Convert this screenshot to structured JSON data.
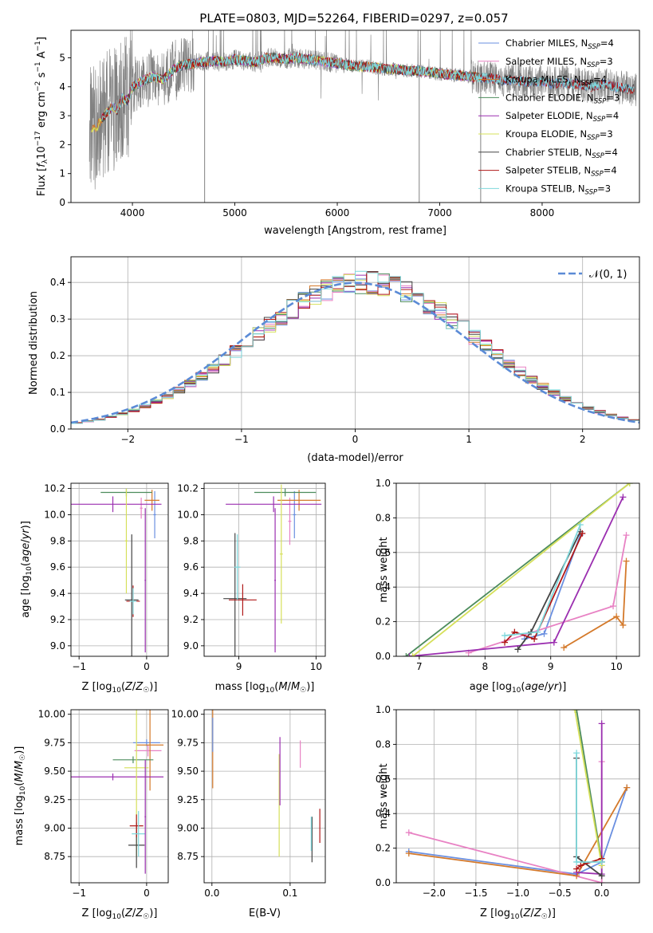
{
  "figure": {
    "title": "PLATE=0803, MJD=52264, FIBERID=0297, z=0.057"
  },
  "colors": {
    "chabrier_miles": "#6a8fe0",
    "salpeter_miles": "#e882c4",
    "kroupa_miles": "#d4792a",
    "chabrier_elodie": "#4c8c5c",
    "salpeter_elodie": "#9b2fb0",
    "kroupa_elodie": "#d6e05a",
    "chabrier_stelib": "#444444",
    "salpeter_stelib": "#b01818",
    "kroupa_stelib": "#7fd8dc",
    "gaussian": "#5b8bd6",
    "data": "#808080"
  },
  "chart_data": [
    {
      "id": "spectrum",
      "type": "line",
      "xlabel": "wavelength [Angstrom, rest frame]",
      "ylabel": "Flux [f_λ 10^-17 erg cm^-2 s^-1 A^-1]",
      "xlim": [
        3400,
        8950
      ],
      "ylim": [
        0,
        5.95
      ],
      "xticks": [
        "4000",
        "5000",
        "6000",
        "7000",
        "8000"
      ],
      "yticks": [
        "0",
        "1",
        "2",
        "3",
        "4",
        "5"
      ],
      "legend": [
        {
          "label": "Chabrier MILES, N",
          "sub": "SSP",
          "suffix": "=4"
        },
        {
          "label": "Salpeter MILES, N",
          "sub": "SSP",
          "suffix": "=3"
        },
        {
          "label": "Kroupa MILES, N",
          "sub": "SSP",
          "suffix": "=4"
        },
        {
          "label": "Chabrier ELODIE, N",
          "sub": "SSP",
          "suffix": "=3"
        },
        {
          "label": "Salpeter ELODIE, N",
          "sub": "SSP",
          "suffix": "=4"
        },
        {
          "label": "Kroupa ELODIE, N",
          "sub": "SSP",
          "suffix": "=3"
        },
        {
          "label": "Chabrier STELIB, N",
          "sub": "SSP",
          "suffix": "=4"
        },
        {
          "label": "Salpeter STELIB, N",
          "sub": "SSP",
          "suffix": "=4"
        },
        {
          "label": "Kroupa STELIB, N",
          "sub": "SSP",
          "suffix": "=3"
        }
      ],
      "continuum": [
        [
          3600,
          2.5
        ],
        [
          3650,
          2.6
        ],
        [
          3700,
          2.9
        ],
        [
          3750,
          3.1
        ],
        [
          3800,
          3.3
        ],
        [
          3850,
          3.2
        ],
        [
          3900,
          3.6
        ],
        [
          3950,
          3.5
        ],
        [
          4000,
          4.0
        ],
        [
          4100,
          4.2
        ],
        [
          4200,
          4.35
        ],
        [
          4300,
          4.25
        ],
        [
          4400,
          4.6
        ],
        [
          4500,
          4.75
        ],
        [
          4600,
          4.8
        ],
        [
          4700,
          4.85
        ],
        [
          4800,
          4.9
        ],
        [
          4900,
          4.85
        ],
        [
          5000,
          4.95
        ],
        [
          5100,
          4.9
        ],
        [
          5200,
          4.85
        ],
        [
          5300,
          5.0
        ],
        [
          5400,
          5.0
        ],
        [
          5500,
          4.95
        ],
        [
          5600,
          5.0
        ],
        [
          5700,
          4.95
        ],
        [
          5800,
          4.9
        ],
        [
          5900,
          4.85
        ],
        [
          6000,
          4.8
        ],
        [
          6100,
          4.75
        ],
        [
          6200,
          4.7
        ],
        [
          6300,
          4.7
        ],
        [
          6400,
          4.65
        ],
        [
          6500,
          4.6
        ],
        [
          6600,
          4.6
        ],
        [
          6700,
          4.55
        ],
        [
          6800,
          4.55
        ],
        [
          6900,
          4.5
        ],
        [
          7000,
          4.45
        ],
        [
          7100,
          4.4
        ],
        [
          7200,
          4.4
        ],
        [
          7300,
          4.35
        ],
        [
          7400,
          4.3
        ],
        [
          7500,
          4.3
        ],
        [
          7600,
          4.2
        ],
        [
          7700,
          4.25
        ],
        [
          7800,
          4.2
        ],
        [
          7900,
          4.15
        ],
        [
          8000,
          4.2
        ],
        [
          8100,
          4.1
        ],
        [
          8200,
          4.15
        ],
        [
          8300,
          4.1
        ],
        [
          8400,
          4.05
        ],
        [
          8500,
          4.0
        ],
        [
          8600,
          4.1
        ],
        [
          8700,
          4.0
        ],
        [
          8800,
          3.95
        ],
        [
          8900,
          3.9
        ]
      ]
    },
    {
      "id": "residuals",
      "type": "line",
      "xlabel": "(data-model)/error",
      "ylabel": "Normed distribution",
      "xlim": [
        -2.5,
        2.5
      ],
      "ylim": [
        0,
        0.47
      ],
      "xticks": [
        "−2",
        "−1",
        "0",
        "1",
        "2"
      ],
      "yticks": [
        "0.0",
        "0.1",
        "0.2",
        "0.3",
        "0.4"
      ],
      "legend": [
        {
          "label": "𝒩(0, 1)"
        }
      ]
    },
    {
      "id": "age_vs_Z",
      "type": "scatter",
      "xlabel": "Z [log10(Z/Z☉)]",
      "ylabel": "age  [log10(age/yr)]",
      "xlim": [
        -1.12,
        0.32
      ],
      "ylim": [
        8.92,
        10.24
      ],
      "xticks": [
        "−1",
        "0"
      ],
      "yticks": [
        "9.0",
        "9.2",
        "9.4",
        "9.6",
        "9.8",
        "10.0",
        "10.2"
      ],
      "series": [
        {
          "x": 0.12,
          "y": 10.0,
          "xerr": 0.02,
          "yerr": 0.18,
          "color": "chabrier_miles"
        },
        {
          "x": -0.08,
          "y": 10.05,
          "xerr": 0.02,
          "yerr": 0.08,
          "color": "salpeter_miles"
        },
        {
          "x": 0.08,
          "y": 10.11,
          "xerr": 0.11,
          "yerr": 0.08,
          "color": "kroupa_miles"
        },
        {
          "x": -0.3,
          "y": 10.17,
          "xerr": 0.38,
          "yerr": 0.03,
          "color": "chabrier_elodie"
        },
        {
          "x": -0.5,
          "y": 10.08,
          "xerr": 0.72,
          "yerr": 0.06,
          "color": "salpeter_elodie"
        },
        {
          "x": -0.3,
          "y": 9.8,
          "xerr": 0.02,
          "yerr": 0.4,
          "color": "kroupa_elodie"
        },
        {
          "x": -0.22,
          "y": 9.35,
          "xerr": 0.1,
          "yerr": 0.5,
          "color": "chabrier_stelib"
        },
        {
          "x": -0.2,
          "y": 9.34,
          "xerr": 0.1,
          "yerr": 0.12,
          "color": "salpeter_stelib"
        },
        {
          "x": -0.2,
          "y": 9.34,
          "xerr": 0.05,
          "yerr": 0.1,
          "color": "kroupa_stelib"
        },
        {
          "x": -0.02,
          "y": 9.5,
          "xerr": 0.01,
          "yerr": 0.55,
          "color": "salpeter_elodie"
        }
      ]
    },
    {
      "id": "age_vs_mass",
      "type": "scatter",
      "xlabel": "mass [log10(M/M☉)]",
      "ylabel": "",
      "xlim": [
        8.55,
        10.12
      ],
      "ylim": [
        8.92,
        10.24
      ],
      "xticks": [
        "9",
        "10"
      ],
      "yticks": [
        "9.0",
        "9.2",
        "9.4",
        "9.6",
        "9.8",
        "10.0",
        "10.2"
      ],
      "series": [
        {
          "x": 9.72,
          "y": 10.0,
          "xerr": 0.02,
          "yerr": 0.18,
          "color": "chabrier_miles"
        },
        {
          "x": 9.66,
          "y": 9.95,
          "xerr": 0.02,
          "yerr": 0.18,
          "color": "salpeter_miles"
        },
        {
          "x": 9.78,
          "y": 10.11,
          "xerr": 0.28,
          "yerr": 0.08,
          "color": "kroupa_miles"
        },
        {
          "x": 9.6,
          "y": 10.17,
          "xerr": 0.4,
          "yerr": 0.03,
          "color": "chabrier_elodie"
        },
        {
          "x": 9.45,
          "y": 10.08,
          "xerr": 0.62,
          "yerr": 0.06,
          "color": "salpeter_elodie"
        },
        {
          "x": 9.55,
          "y": 9.7,
          "xerr": 0.02,
          "yerr": 0.53,
          "color": "kroupa_elodie"
        },
        {
          "x": 8.95,
          "y": 9.36,
          "xerr": 0.15,
          "yerr": 0.5,
          "color": "chabrier_stelib"
        },
        {
          "x": 9.05,
          "y": 9.35,
          "xerr": 0.18,
          "yerr": 0.12,
          "color": "salpeter_stelib"
        },
        {
          "x": 8.98,
          "y": 9.6,
          "xerr": 0.04,
          "yerr": 0.25,
          "color": "kroupa_stelib"
        },
        {
          "x": 9.47,
          "y": 9.5,
          "xerr": 0.01,
          "yerr": 0.55,
          "color": "salpeter_elodie"
        }
      ]
    },
    {
      "id": "weight_vs_age",
      "type": "line",
      "xlabel": "age  [log10(age/yr)]",
      "ylabel": "mass weight",
      "xlim": [
        6.65,
        10.35
      ],
      "ylim": [
        0,
        1.0
      ],
      "xticks": [
        "7",
        "8",
        "9",
        "10"
      ],
      "yticks": [
        "0.0",
        "0.2",
        "0.4",
        "0.6",
        "0.8",
        "1.0"
      ],
      "series": [
        {
          "color": "chabrier_miles",
          "points": [
            [
              8.6,
              0.1
            ],
            [
              8.9,
              0.13
            ],
            [
              9.45,
              0.7
            ]
          ]
        },
        {
          "color": "salpeter_miles",
          "points": [
            [
              7.75,
              0.02
            ],
            [
              9.95,
              0.29
            ],
            [
              10.15,
              0.7
            ]
          ]
        },
        {
          "color": "kroupa_miles",
          "points": [
            [
              9.2,
              0.05
            ],
            [
              10.0,
              0.23
            ],
            [
              10.1,
              0.18
            ],
            [
              10.15,
              0.55
            ]
          ]
        },
        {
          "color": "chabrier_elodie",
          "points": [
            [
              6.8,
              0.0
            ],
            [
              10.2,
              1.0
            ]
          ]
        },
        {
          "color": "salpeter_elodie",
          "points": [
            [
              6.85,
              0.0
            ],
            [
              9.05,
              0.08
            ],
            [
              10.1,
              0.92
            ]
          ]
        },
        {
          "color": "kroupa_elodie",
          "points": [
            [
              6.9,
              0.0
            ],
            [
              10.2,
              1.0
            ]
          ]
        },
        {
          "color": "chabrier_stelib",
          "points": [
            [
              8.5,
              0.04
            ],
            [
              8.7,
              0.14
            ],
            [
              9.45,
              0.72
            ]
          ]
        },
        {
          "color": "salpeter_stelib",
          "points": [
            [
              8.3,
              0.08
            ],
            [
              8.45,
              0.14
            ],
            [
              8.75,
              0.1
            ],
            [
              9.48,
              0.71
            ]
          ]
        },
        {
          "color": "kroupa_stelib",
          "points": [
            [
              8.3,
              0.12
            ],
            [
              8.8,
              0.14
            ],
            [
              9.45,
              0.76
            ]
          ]
        }
      ]
    },
    {
      "id": "mass_vs_Z",
      "type": "scatter",
      "xlabel": "Z [log10(Z/Z☉)]",
      "ylabel": "mass [log10(M/M☉)]",
      "xlim": [
        -1.12,
        0.32
      ],
      "ylim": [
        8.52,
        10.04
      ],
      "xticks": [
        "−1",
        "0"
      ],
      "yticks": [
        "8.75",
        "9.00",
        "9.25",
        "9.50",
        "9.75",
        "10.00"
      ],
      "series": [
        {
          "x": 0.0,
          "y": 9.75,
          "xerr": 0.2,
          "yerr": 0.03,
          "color": "chabrier_miles"
        },
        {
          "x": 0.02,
          "y": 9.68,
          "xerr": 0.2,
          "yerr": 0.05,
          "color": "salpeter_miles"
        },
        {
          "x": 0.05,
          "y": 9.73,
          "xerr": 0.2,
          "yerr": 0.4,
          "color": "kroupa_miles"
        },
        {
          "x": -0.2,
          "y": 9.6,
          "xerr": 0.3,
          "yerr": 0.03,
          "color": "chabrier_elodie"
        },
        {
          "x": -0.5,
          "y": 9.45,
          "xerr": 0.75,
          "yerr": 0.03,
          "color": "salpeter_elodie"
        },
        {
          "x": -0.15,
          "y": 9.53,
          "xerr": 0.18,
          "yerr": 0.78,
          "color": "kroupa_elodie"
        },
        {
          "x": -0.15,
          "y": 8.85,
          "xerr": 0.12,
          "yerr": 0.2,
          "color": "chabrier_stelib"
        },
        {
          "x": -0.15,
          "y": 9.02,
          "xerr": 0.1,
          "yerr": 0.1,
          "color": "salpeter_stelib"
        },
        {
          "x": -0.12,
          "y": 8.95,
          "xerr": 0.1,
          "yerr": 0.2,
          "color": "kroupa_stelib"
        },
        {
          "x": -0.02,
          "y": 9.1,
          "xerr": 0.01,
          "yerr": 0.5,
          "color": "salpeter_elodie"
        }
      ]
    },
    {
      "id": "mass_vs_EBV",
      "type": "scatter",
      "xlabel": "E(B-V)",
      "ylabel": "",
      "xlim": [
        -0.01,
        0.145
      ],
      "ylim": [
        8.52,
        10.04
      ],
      "xticks": [
        "0.0",
        "0.1"
      ],
      "yticks": [
        "8.75",
        "9.00",
        "9.25",
        "9.50",
        "9.75",
        "10.00"
      ],
      "series": [
        {
          "x": 0.001,
          "y": 9.7,
          "yerr": 0.35,
          "color": "kroupa_miles"
        },
        {
          "x": 0.001,
          "y": 9.82,
          "yerr": 0.15,
          "color": "chabrier_miles"
        },
        {
          "x": 0.086,
          "y": 9.2,
          "yerr": 0.45,
          "color": "kroupa_elodie"
        },
        {
          "x": 0.087,
          "y": 9.5,
          "yerr": 0.3,
          "color": "salpeter_elodie"
        },
        {
          "x": 0.113,
          "y": 9.65,
          "yerr": 0.12,
          "color": "salpeter_miles"
        },
        {
          "x": 0.128,
          "y": 8.9,
          "yerr": 0.2,
          "color": "chabrier_stelib"
        },
        {
          "x": 0.127,
          "y": 8.95,
          "yerr": 0.15,
          "color": "kroupa_stelib"
        },
        {
          "x": 0.138,
          "y": 9.02,
          "yerr": 0.15,
          "color": "salpeter_stelib"
        }
      ]
    },
    {
      "id": "weight_vs_Z",
      "type": "line",
      "xlabel": "Z [log10(Z/Z☉)]",
      "ylabel": "mass weight",
      "xlim": [
        -2.45,
        0.45
      ],
      "ylim": [
        0,
        1.0
      ],
      "xticks": [
        "−2.0",
        "−1.5",
        "−1.0",
        "−0.5",
        "0.0"
      ],
      "yticks": [
        "0.0",
        "0.2",
        "0.4",
        "0.6",
        "0.8",
        "1.0"
      ],
      "series": [
        {
          "color": "chabrier_miles",
          "points": [
            [
              -2.3,
              0.18
            ],
            [
              -0.3,
              0.05
            ],
            [
              0.0,
              0.12
            ],
            [
              0.3,
              0.55
            ]
          ]
        },
        {
          "color": "salpeter_miles",
          "points": [
            [
              -2.3,
              0.29
            ],
            [
              0.0,
              0.0
            ],
            [
              0.0,
              0.7
            ]
          ]
        },
        {
          "color": "kroupa_miles",
          "points": [
            [
              -2.3,
              0.17
            ],
            [
              -0.3,
              0.04
            ],
            [
              0.3,
              0.55
            ]
          ]
        },
        {
          "color": "chabrier_elodie",
          "points": [
            [
              -0.3,
              1.0
            ],
            [
              0.0,
              0.12
            ]
          ]
        },
        {
          "color": "salpeter_elodie",
          "points": [
            [
              -0.3,
              0.06
            ],
            [
              0.0,
              0.05
            ],
            [
              0.0,
              0.92
            ]
          ]
        },
        {
          "color": "kroupa_elodie",
          "points": [
            [
              -0.32,
              1.0
            ],
            [
              0.0,
              0.1
            ]
          ]
        },
        {
          "color": "chabrier_stelib",
          "points": [
            [
              -0.3,
              0.72
            ],
            [
              -0.3,
              0.15
            ],
            [
              0.0,
              0.04
            ]
          ]
        },
        {
          "color": "salpeter_stelib",
          "points": [
            [
              -0.3,
              0.08
            ],
            [
              -0.25,
              0.1
            ],
            [
              0.0,
              0.14
            ]
          ]
        },
        {
          "color": "kroupa_stelib",
          "points": [
            [
              -0.3,
              0.75
            ],
            [
              -0.3,
              0.12
            ],
            [
              0.0,
              0.12
            ]
          ]
        }
      ]
    }
  ]
}
